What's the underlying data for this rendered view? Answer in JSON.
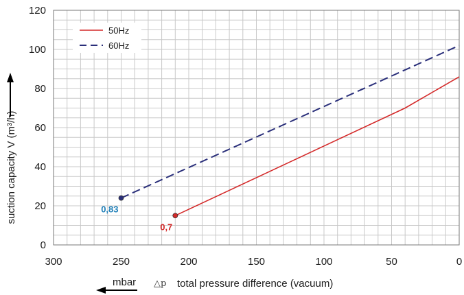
{
  "chart_data": {
    "type": "line",
    "ylabel": "suction capacity V (m³/h)",
    "xlabel": "total pressure difference (vacuum)",
    "xlabel_symbol": "△p",
    "x_unit": "mbar",
    "xlim": [
      300,
      0
    ],
    "ylim": [
      0,
      120
    ],
    "x_reversed": true,
    "xticks": [
      "300",
      "250",
      "200",
      "150",
      "100",
      "50",
      "0"
    ],
    "yticks": [
      "0",
      "20",
      "40",
      "60",
      "80",
      "100",
      "120"
    ],
    "grid": true,
    "legend_placement": "top-left",
    "series": [
      {
        "name": "50Hz",
        "color": "#d42a2a",
        "style": "solid",
        "x": [
          210,
          40,
          0
        ],
        "y": [
          15,
          70,
          86
        ],
        "endpoint_label": "0,7",
        "endpoint_label_color": "#d42a2a"
      },
      {
        "name": "60Hz",
        "color": "#2a2f7a",
        "style": "dashed",
        "x": [
          250,
          0
        ],
        "y": [
          24,
          102
        ],
        "endpoint_label": "0,83",
        "endpoint_label_color": "#1f7fb8"
      }
    ]
  }
}
